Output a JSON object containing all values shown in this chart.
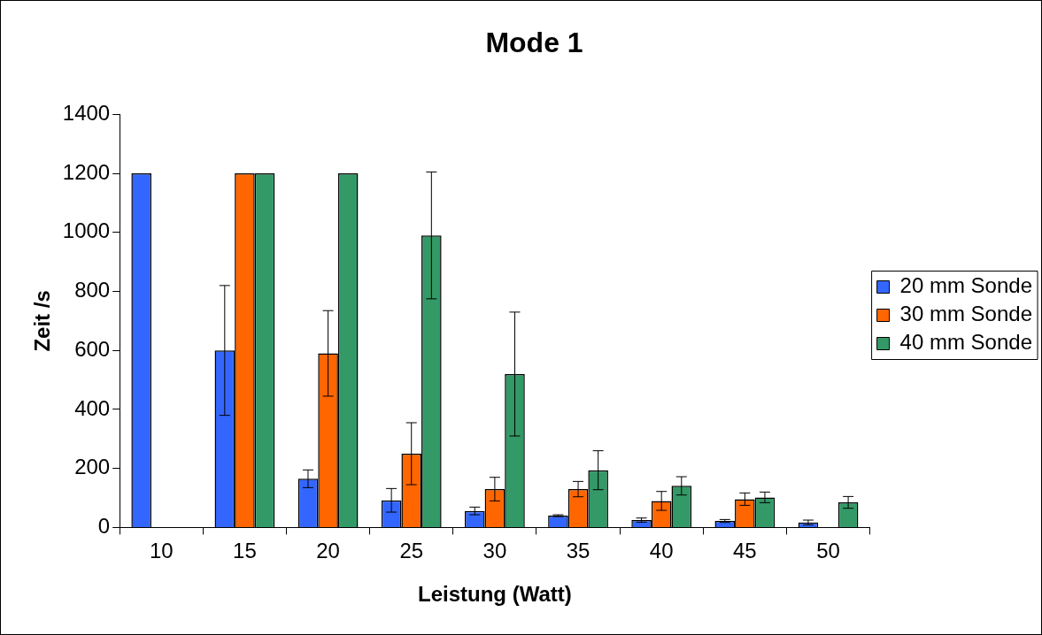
{
  "chart_data": {
    "type": "bar",
    "title": "Mode 1",
    "xlabel": "Leistung (Watt)",
    "ylabel": "Zeit /s",
    "categories": [
      "10",
      "15",
      "20",
      "25",
      "30",
      "35",
      "40",
      "45",
      "50"
    ],
    "series": [
      {
        "name": "20 mm Sonde",
        "color": "#3366ff",
        "values": [
          1200,
          600,
          165,
          92,
          56,
          40,
          25,
          22,
          17
        ],
        "errors": [
          null,
          220,
          30,
          40,
          13,
          3,
          7,
          5,
          8
        ]
      },
      {
        "name": "30 mm Sonde",
        "color": "#ff6600",
        "values": [
          0,
          1200,
          590,
          250,
          130,
          130,
          90,
          96,
          null
        ],
        "errors": [
          null,
          null,
          145,
          105,
          40,
          26,
          32,
          21,
          null
        ]
      },
      {
        "name": "40 mm Sonde",
        "color": "#339966",
        "values": [
          0,
          1200,
          1200,
          990,
          520,
          194,
          141,
          102,
          85
        ],
        "errors": [
          null,
          null,
          null,
          215,
          210,
          66,
          31,
          18,
          20
        ]
      }
    ],
    "ylim": [
      0,
      1400
    ],
    "yticks": [
      0,
      200,
      400,
      600,
      800,
      1000,
      1200,
      1400
    ],
    "grid": false,
    "legend": "right"
  }
}
